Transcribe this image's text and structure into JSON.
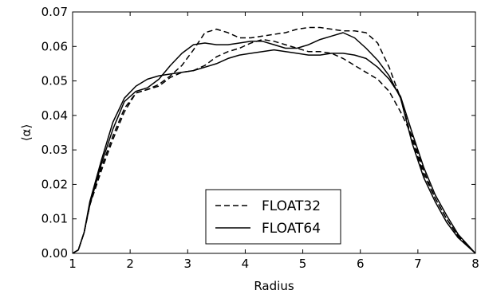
{
  "chart_data": {
    "type": "line",
    "xlabel": "Radius",
    "ylabel": "⟨α⟩",
    "xlim": [
      1,
      8
    ],
    "ylim": [
      0,
      0.07
    ],
    "xticks": [
      "1",
      "2",
      "3",
      "4",
      "5",
      "6",
      "7",
      "8"
    ],
    "yticks": [
      "0.00",
      "0.01",
      "0.02",
      "0.03",
      "0.04",
      "0.05",
      "0.06",
      "0.07"
    ],
    "grid": false,
    "legend_position": "lower center",
    "series": [
      {
        "name": "FLOAT32",
        "style": "dashed",
        "color": "#000000",
        "x": [
          1.0,
          1.1,
          1.2,
          1.3,
          1.5,
          1.7,
          1.9,
          2.1,
          2.3,
          2.5,
          2.7,
          2.9,
          3.1,
          3.3,
          3.5,
          3.7,
          3.9,
          4.1,
          4.3,
          4.5,
          4.7,
          4.9,
          5.1,
          5.3,
          5.5,
          5.7,
          5.9,
          6.1,
          6.3,
          6.5,
          6.7,
          6.9,
          7.1,
          7.3,
          7.5,
          7.7,
          8.0
        ],
        "y": [
          0.0,
          0.001,
          0.006,
          0.014,
          0.025,
          0.034,
          0.042,
          0.0465,
          0.0475,
          0.049,
          0.0515,
          0.0545,
          0.059,
          0.064,
          0.065,
          0.064,
          0.0625,
          0.0625,
          0.063,
          0.0635,
          0.064,
          0.065,
          0.0655,
          0.0655,
          0.065,
          0.0645,
          0.0645,
          0.064,
          0.061,
          0.054,
          0.045,
          0.033,
          0.023,
          0.016,
          0.01,
          0.005,
          0.0
        ]
      },
      {
        "name": "",
        "style": "dashed",
        "color": "#000000",
        "x": [
          1.0,
          1.1,
          1.2,
          1.3,
          1.5,
          1.7,
          1.9,
          2.1,
          2.3,
          2.5,
          2.7,
          2.9,
          3.1,
          3.3,
          3.5,
          3.7,
          3.9,
          4.1,
          4.3,
          4.5,
          4.7,
          4.9,
          5.1,
          5.3,
          5.5,
          5.7,
          5.9,
          6.1,
          6.3,
          6.5,
          6.7,
          6.9,
          7.1,
          7.3,
          7.5,
          7.7,
          8.0
        ],
        "y": [
          0.0,
          0.001,
          0.006,
          0.014,
          0.024,
          0.033,
          0.041,
          0.0465,
          0.0475,
          0.0485,
          0.051,
          0.0525,
          0.053,
          0.0545,
          0.057,
          0.0585,
          0.0595,
          0.061,
          0.062,
          0.0615,
          0.0605,
          0.0595,
          0.0585,
          0.0585,
          0.058,
          0.0565,
          0.0545,
          0.0525,
          0.0505,
          0.047,
          0.041,
          0.034,
          0.024,
          0.016,
          0.01,
          0.005,
          0.0
        ]
      },
      {
        "name": "FLOAT64",
        "style": "solid",
        "color": "#000000",
        "x": [
          1.0,
          1.1,
          1.2,
          1.3,
          1.5,
          1.7,
          1.9,
          2.1,
          2.3,
          2.5,
          2.7,
          2.9,
          3.1,
          3.3,
          3.5,
          3.7,
          3.9,
          4.1,
          4.3,
          4.5,
          4.7,
          4.9,
          5.1,
          5.3,
          5.5,
          5.7,
          5.9,
          6.1,
          6.3,
          6.5,
          6.7,
          6.9,
          7.1,
          7.3,
          7.5,
          7.7,
          8.0
        ],
        "y": [
          0.0,
          0.001,
          0.006,
          0.014,
          0.026,
          0.036,
          0.044,
          0.047,
          0.048,
          0.0505,
          0.0545,
          0.058,
          0.0605,
          0.061,
          0.0605,
          0.0605,
          0.061,
          0.0615,
          0.0615,
          0.0605,
          0.0595,
          0.0595,
          0.0605,
          0.062,
          0.063,
          0.064,
          0.0625,
          0.0595,
          0.056,
          0.0515,
          0.045,
          0.032,
          0.022,
          0.015,
          0.009,
          0.0045,
          0.0
        ]
      },
      {
        "name": "",
        "style": "solid",
        "color": "#000000",
        "x": [
          1.0,
          1.1,
          1.2,
          1.3,
          1.5,
          1.7,
          1.9,
          2.1,
          2.3,
          2.5,
          2.7,
          2.9,
          3.1,
          3.3,
          3.5,
          3.7,
          3.9,
          4.1,
          4.3,
          4.5,
          4.7,
          4.9,
          5.1,
          5.3,
          5.5,
          5.7,
          5.9,
          6.1,
          6.3,
          6.5,
          6.7,
          6.9,
          7.1,
          7.3,
          7.5,
          7.7,
          8.0
        ],
        "y": [
          0.0,
          0.001,
          0.006,
          0.015,
          0.027,
          0.038,
          0.045,
          0.0485,
          0.0505,
          0.0515,
          0.052,
          0.0525,
          0.053,
          0.054,
          0.055,
          0.0565,
          0.0575,
          0.058,
          0.0585,
          0.059,
          0.0585,
          0.058,
          0.0575,
          0.0575,
          0.058,
          0.058,
          0.0575,
          0.0565,
          0.054,
          0.0505,
          0.0455,
          0.035,
          0.025,
          0.017,
          0.011,
          0.0055,
          0.0
        ]
      }
    ],
    "legend": [
      {
        "label": "FLOAT32",
        "style": "dashed"
      },
      {
        "label": "FLOAT64",
        "style": "solid"
      }
    ]
  }
}
